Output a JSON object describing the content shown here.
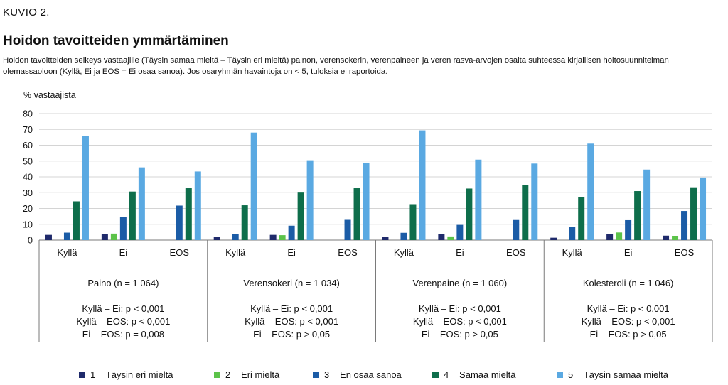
{
  "header": {
    "kuvio": "KUVIO 2.",
    "title": "Hoidon tavoitteiden ymmärtäminen",
    "subtitle": "Hoidon tavoitteiden selkeys vastaajille (Täysin samaa mieltä – Täysin eri mieltä) painon, verensokerin, verenpaineen ja veren rasva-arvojen osalta suhteessa kirjallisen hoitosuunnitelman olemassaoloon (Kyllä, Ei ja EOS = Ei osaa sanoa). Jos osaryhmän havaintoja on < 5, tuloksia ei raportoida."
  },
  "colors": {
    "s1": "#1f2a6b",
    "s2": "#5cc34a",
    "s3": "#1b5ca6",
    "s4": "#0e6e4b",
    "s5": "#5aa9e2",
    "grid": "#d4d4d4",
    "axis": "#7a7a7a"
  },
  "chart_data": {
    "type": "bar",
    "ylabel": "% vastaajista",
    "ylim": [
      0,
      80
    ],
    "yticks": [
      0,
      10,
      20,
      30,
      40,
      50,
      60,
      70,
      80
    ],
    "grid": true,
    "legend_position": "bottom",
    "series_names": [
      "1 = Täysin eri mieltä",
      "2 = Eri mieltä",
      "3 = En osaa sanoa",
      "4 = Samaa mieltä",
      "5 = Täysin samaa mieltä"
    ],
    "groups": [
      {
        "label": "Paino (n = 1 064)",
        "tests": [
          "Kyllä – Ei: p < 0,001",
          "Kyllä – EOS: p < 0,001",
          "Ei – EOS: p = 0,008"
        ],
        "categories": [
          {
            "label": "Kyllä",
            "values": [
              3.3,
              null,
              4.7,
              24.5,
              66.0
            ]
          },
          {
            "label": "Ei",
            "values": [
              4.0,
              4.1,
              14.6,
              30.7,
              46.0
            ]
          },
          {
            "label": "EOS",
            "values": [
              null,
              null,
              21.8,
              32.8,
              43.4
            ]
          }
        ]
      },
      {
        "label": "Verensokeri (n = 1 034)",
        "tests": [
          "Kyllä – Ei: p < 0,001",
          "Kyllä – EOS: p < 0,001",
          "Ei – EOS: p > 0,05"
        ],
        "categories": [
          {
            "label": "Kyllä",
            "values": [
              2.2,
              null,
              3.9,
              22.0,
              68.0
            ]
          },
          {
            "label": "Ei",
            "values": [
              3.3,
              3.1,
              9.1,
              30.5,
              50.5
            ]
          },
          {
            "label": "EOS",
            "values": [
              null,
              null,
              12.8,
              32.8,
              49.0
            ]
          }
        ]
      },
      {
        "label": "Verenpaine (n = 1 060)",
        "tests": [
          "Kyllä – Ei: p < 0,001",
          "Kyllä – EOS: p < 0,001",
          "Ei – EOS: p > 0,05"
        ],
        "categories": [
          {
            "label": "Kyllä",
            "values": [
              1.9,
              null,
              4.6,
              22.7,
              69.4
            ]
          },
          {
            "label": "Ei",
            "values": [
              4.0,
              2.3,
              9.6,
              32.6,
              50.9
            ]
          },
          {
            "label": "EOS",
            "values": [
              null,
              null,
              12.7,
              35.0,
              48.4
            ]
          }
        ]
      },
      {
        "label": "Kolesteroli (n = 1 046)",
        "tests": [
          "Kyllä – Ei: p < 0,001",
          "Kyllä – EOS: p < 0,001",
          "Ei – EOS: p > 0,05"
        ],
        "categories": [
          {
            "label": "Kyllä",
            "values": [
              1.5,
              null,
              8.1,
              27.1,
              61.0
            ]
          },
          {
            "label": "Ei",
            "values": [
              4.0,
              4.8,
              12.6,
              31.0,
              44.6
            ]
          },
          {
            "label": "EOS",
            "values": [
              2.8,
              2.7,
              18.4,
              33.4,
              39.6
            ]
          }
        ]
      }
    ]
  }
}
